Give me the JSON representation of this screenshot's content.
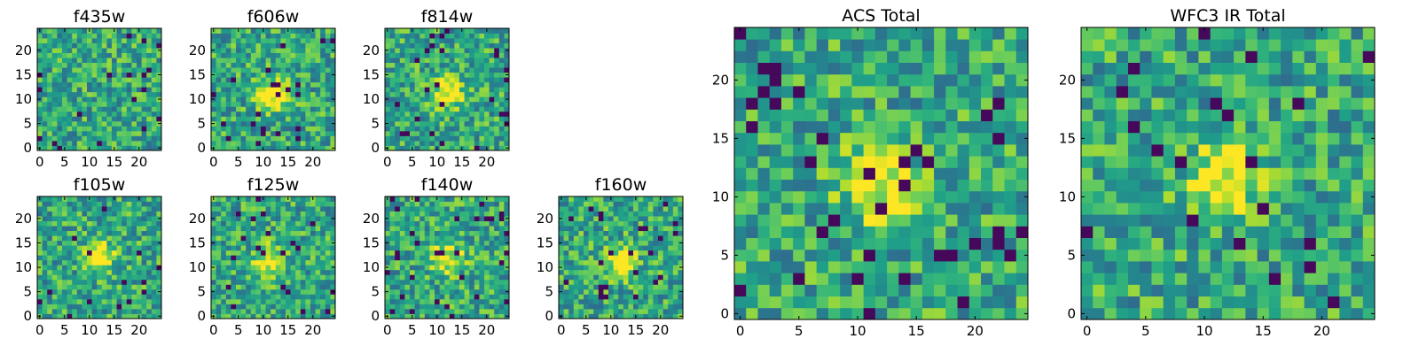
{
  "chart_data": {
    "type": "heatmap",
    "colormap": "viridis",
    "grid": false,
    "panels": [
      {
        "id": "f435w",
        "title": "f435w",
        "xlim": [
          -0.5,
          24.5
        ],
        "ylim": [
          -0.5,
          24.5
        ],
        "xticks": [
          0,
          5,
          10,
          15,
          20
        ],
        "yticks": [
          0,
          5,
          10,
          15,
          20
        ],
        "hot_spot": null
      },
      {
        "id": "f606w",
        "title": "f606w",
        "xlim": [
          -0.5,
          24.5
        ],
        "ylim": [
          -0.5,
          24.5
        ],
        "xticks": [
          0,
          5,
          10,
          15,
          20
        ],
        "yticks": [
          0,
          5,
          10,
          15,
          20
        ],
        "hot_spot": [
          12,
          11
        ]
      },
      {
        "id": "f814w",
        "title": "f814w",
        "xlim": [
          -0.5,
          24.5
        ],
        "ylim": [
          -0.5,
          24.5
        ],
        "xticks": [
          0,
          5,
          10,
          15,
          20
        ],
        "yticks": [
          0,
          5,
          10,
          15,
          20
        ],
        "hot_spot": [
          12,
          11
        ]
      },
      {
        "id": "f105w",
        "title": "f105w",
        "xlim": [
          -0.5,
          24.5
        ],
        "ylim": [
          -0.5,
          24.5
        ],
        "xticks": [
          0,
          5,
          10,
          15,
          20
        ],
        "yticks": [
          0,
          5,
          10,
          15,
          20
        ],
        "hot_spot": [
          12,
          12
        ]
      },
      {
        "id": "f125w",
        "title": "f125w",
        "xlim": [
          -0.5,
          24.5
        ],
        "ylim": [
          -0.5,
          24.5
        ],
        "xticks": [
          0,
          5,
          10,
          15,
          20
        ],
        "yticks": [
          0,
          5,
          10,
          15,
          20
        ],
        "hot_spot": [
          11,
          11
        ]
      },
      {
        "id": "f140w",
        "title": "f140w",
        "xlim": [
          -0.5,
          24.5
        ],
        "ylim": [
          -0.5,
          24.5
        ],
        "xticks": [
          0,
          5,
          10,
          15,
          20
        ],
        "yticks": [
          0,
          5,
          10,
          15,
          20
        ],
        "hot_spot": [
          12,
          12
        ]
      },
      {
        "id": "f160w",
        "title": "f160w",
        "xlim": [
          -0.5,
          24.5
        ],
        "ylim": [
          -0.5,
          24.5
        ],
        "xticks": [
          0,
          5,
          10,
          15,
          20
        ],
        "yticks": [
          0,
          5,
          10,
          15,
          20
        ],
        "hot_spot": [
          12,
          11
        ]
      },
      {
        "id": "acs-total",
        "title": "ACS Total",
        "xlim": [
          -0.5,
          24.5
        ],
        "ylim": [
          -0.5,
          24.5
        ],
        "xticks": [
          0,
          5,
          10,
          15,
          20
        ],
        "yticks": [
          0,
          5,
          10,
          15,
          20
        ],
        "hot_spot": [
          12,
          11
        ]
      },
      {
        "id": "wfc3-ir-total",
        "title": "WFC3 IR Total",
        "xlim": [
          -0.5,
          24.5
        ],
        "ylim": [
          -0.5,
          24.5
        ],
        "xticks": [
          0,
          5,
          10,
          15,
          20
        ],
        "yticks": [
          0,
          5,
          10,
          15,
          20
        ],
        "hot_spot": [
          12,
          12
        ]
      }
    ]
  }
}
